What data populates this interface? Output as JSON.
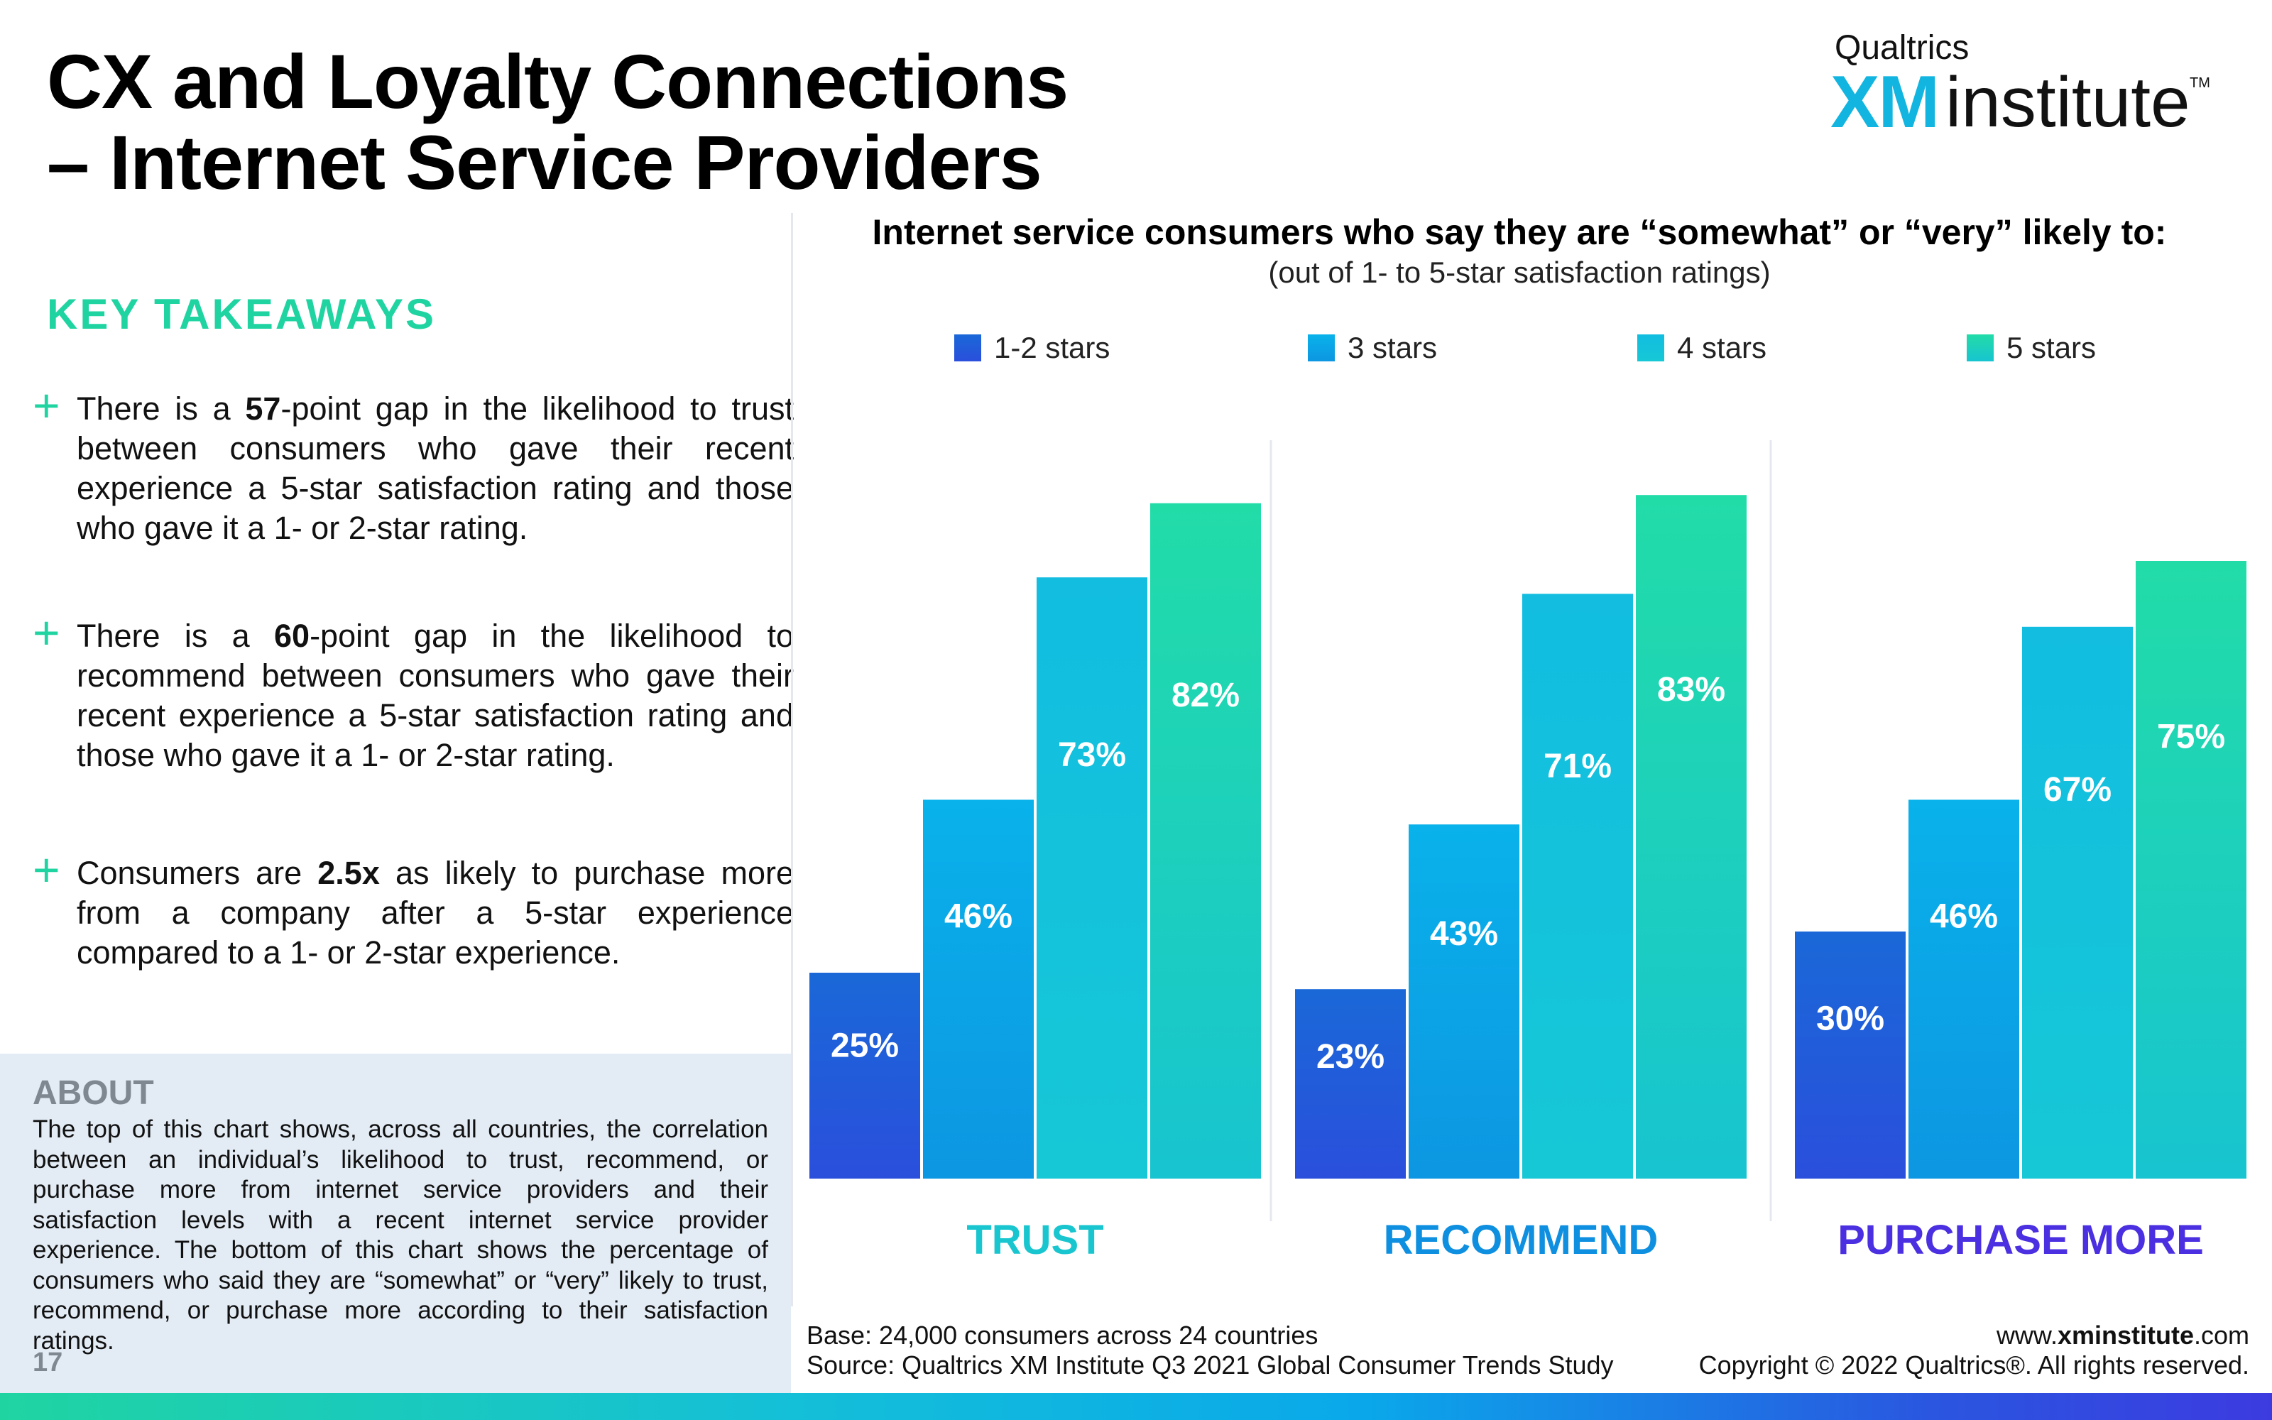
{
  "page": {
    "title_line1": "CX and Loyalty Connections",
    "title_line2": "– Internet Service Providers",
    "page_number": "17"
  },
  "logo": {
    "top": "Qualtrics",
    "xm": "XM",
    "institute": "institute",
    "tm": "TM"
  },
  "takeaways": {
    "heading": "KEY TAKEAWAYS",
    "items": [
      {
        "pre": "There is a ",
        "bold": "57",
        "post": "-point gap in the likelihood to trust between consumers who gave their recent experience a 5-star satisfaction rating and those who gave it a 1- or 2-star rating."
      },
      {
        "pre": "There is a ",
        "bold": "60",
        "post": "-point gap in the likelihood to recommend between consumers who gave their recent experience a 5-star satisfaction rating and those who gave it a 1- or 2-star rating."
      },
      {
        "pre": "Consumers are ",
        "bold": "2.5x",
        "post": " as likely to purchase more from a company after a 5-star experience compared to a 1- or 2-star experience."
      }
    ]
  },
  "about": {
    "heading": "ABOUT",
    "text": "The top of this chart shows, across all countries, the correlation between an individual’s likelihood to trust, recommend, or purchase more from internet service providers and their satisfaction levels with a recent internet service provider experience. The bottom of this chart shows the percentage of consumers who said they are “somewhat” or “very” likely to trust, recommend, or purchase more according to their satisfaction ratings."
  },
  "footer": {
    "base": "Base: 24,000 consumers across 24 countries",
    "source": "Source: Qualtrics XM Institute Q3 2021 Global Consumer Trends Study",
    "url_pre": "www.",
    "url_bold": "xminstitute",
    "url_post": ".com",
    "copyright": "Copyright © 2022 Qualtrics®. All rights reserved."
  },
  "chart_data": {
    "type": "bar",
    "title": "Internet service consumers who say they are “somewhat” or “very” likely to:",
    "subtitle": "(out of 1- to 5-star satisfaction ratings)",
    "categories": [
      "TRUST",
      "RECOMMEND",
      "PURCHASE MORE"
    ],
    "category_colors": [
      "#19c6cf",
      "#0e8fe0",
      "#4a30e0"
    ],
    "series": [
      {
        "name": "1-2 stars",
        "values": [
          25,
          23,
          30
        ],
        "color_top": "#1a68d8",
        "color_bottom": "#2a4fdc"
      },
      {
        "name": "3 stars",
        "values": [
          46,
          43,
          46
        ],
        "color_top": "#09b2ea",
        "color_bottom": "#0d96e2"
      },
      {
        "name": "4 stars",
        "values": [
          73,
          71,
          67
        ],
        "color_top": "#12bde0",
        "color_bottom": "#16c8d6"
      },
      {
        "name": "5 stars",
        "values": [
          82,
          83,
          75
        ],
        "color_top": "#22dca8",
        "color_bottom": "#17c4d0"
      }
    ],
    "value_suffix": "%",
    "ylim": [
      0,
      100
    ],
    "grid": false,
    "legend": "top"
  }
}
